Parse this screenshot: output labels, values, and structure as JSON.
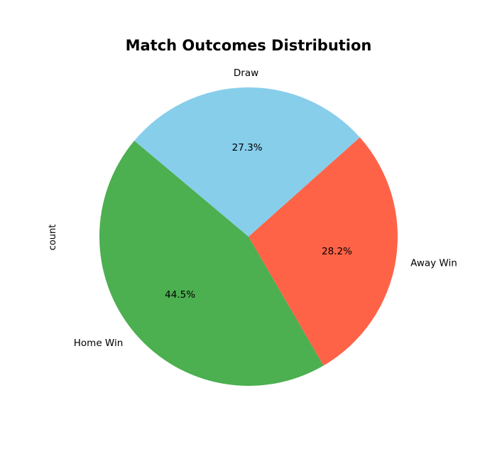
{
  "chart_data": {
    "type": "pie",
    "title": "Match Outcomes Distribution",
    "ylabel": "count",
    "xlabel": "",
    "start_angle_deg": 140,
    "direction": "counterclockwise",
    "slices": [
      {
        "label": "Home Win",
        "percent": 44.5,
        "percent_label": "44.5%",
        "color": "#4caf50"
      },
      {
        "label": "Away Win",
        "percent": 28.2,
        "percent_label": "28.2%",
        "color": "#ff6347"
      },
      {
        "label": "Draw",
        "percent": 27.3,
        "percent_label": "27.3%",
        "color": "#87ceeb"
      }
    ]
  }
}
